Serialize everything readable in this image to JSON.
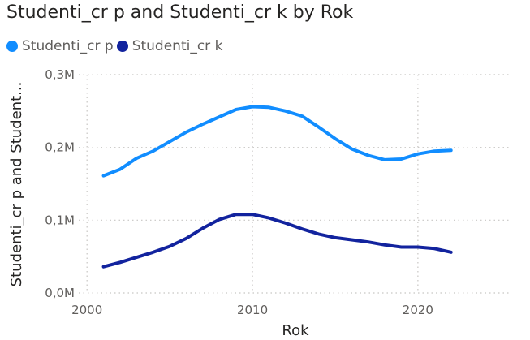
{
  "title": "Studenti_cr p and Studenti_cr k by Rok",
  "chart_data": {
    "type": "line",
    "title": "Studenti_cr p and Studenti_cr k by Rok",
    "xlabel": "Rok",
    "ylabel": "Studenti_cr p and Student...",
    "x": [
      2001,
      2002,
      2003,
      2004,
      2005,
      2006,
      2007,
      2008,
      2009,
      2010,
      2011,
      2012,
      2013,
      2014,
      2015,
      2016,
      2017,
      2018,
      2019,
      2020,
      2021,
      2022
    ],
    "series": [
      {
        "name": "Studenti_cr p",
        "color": "#118DFF",
        "values": [
          161000,
          170000,
          185000,
          195000,
          208000,
          221000,
          232000,
          242000,
          252000,
          256000,
          255000,
          250000,
          243000,
          228000,
          212000,
          198000,
          189000,
          183000,
          184000,
          191000,
          195000,
          196000
        ]
      },
      {
        "name": "Studenti_cr k",
        "color": "#12239E",
        "values": [
          36000,
          42000,
          49000,
          56000,
          64000,
          75000,
          89000,
          101000,
          108000,
          108000,
          103000,
          96000,
          88000,
          81000,
          76000,
          73000,
          70000,
          66000,
          63000,
          63000,
          61000,
          56000
        ]
      }
    ],
    "xlim": [
      1999.5,
      2025.5
    ],
    "ylim": [
      0,
      300000
    ],
    "x_ticks": [
      2000,
      2010,
      2020
    ],
    "x_tick_labels": [
      "2000",
      "2010",
      "2020"
    ],
    "y_ticks": [
      0,
      100000,
      200000,
      300000
    ],
    "y_tick_labels": [
      "0,0M",
      "0,1M",
      "0,2M",
      "0,3M"
    ],
    "grid": "dotted",
    "legend": "top-left"
  }
}
